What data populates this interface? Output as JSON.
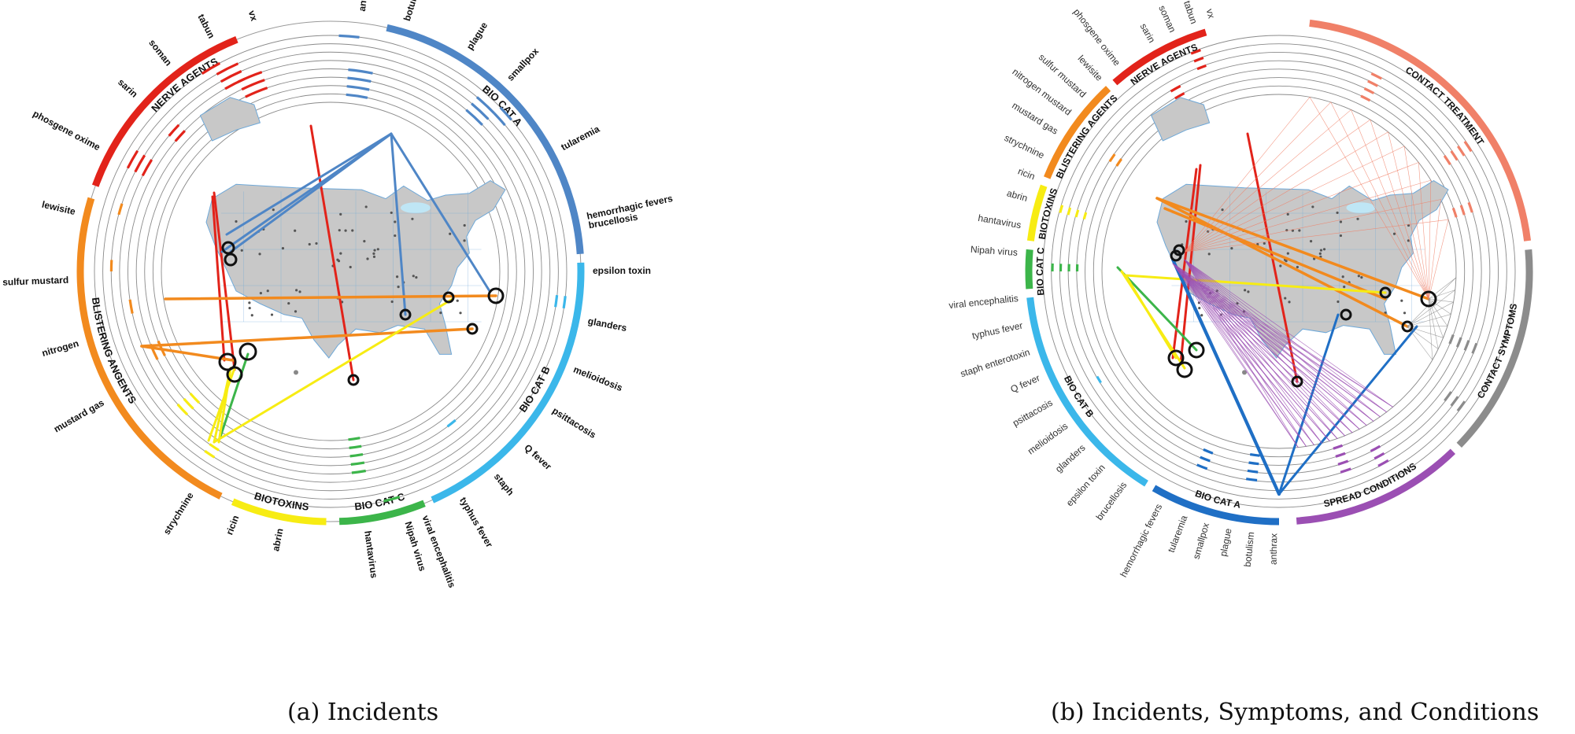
{
  "captions": {
    "a": "(a) Incidents",
    "b": "(b) Incidents, Symptoms, and Conditions"
  },
  "colors": {
    "nerve": "#e2231a",
    "blister": "#f28a1e",
    "biotox": "#f7ec13",
    "catc": "#3cb54a",
    "catb": "#3bb7ea",
    "cata": "#1f6fc5",
    "cata_light": "#4f86c6",
    "contact_treatment": "#f08068",
    "contact_symptoms": "#8c8c8c",
    "spread": "#9b4fb3",
    "map_fill": "#c8c8c8",
    "ring": "#8a8a8a"
  },
  "diagram_a": {
    "groups": [
      {
        "name": "NERVE AGENTS",
        "color": "nerve",
        "items": [
          "vx",
          "tabun",
          "soman",
          "sarin"
        ]
      },
      {
        "name": "BLISTERING ANGENTS",
        "color": "blister",
        "items": [
          "phosgene oxime",
          "lewisite",
          "sulfur mustard",
          "nitrogen",
          "mustard gas"
        ]
      },
      {
        "name": "BIOTOXINS",
        "color": "biotox",
        "items": [
          "strychnine",
          "ricin",
          "abrin"
        ]
      },
      {
        "name": "BIO CAT C",
        "color": "catc",
        "items": [
          "hantavirus",
          "Nipah virus"
        ]
      },
      {
        "name": "BIO CAT B",
        "color": "catb",
        "items": [
          "viral encephalitis",
          "typhus fever",
          "staph",
          "Q fever",
          "psittacosis",
          "melioidosis",
          "glanders",
          "epsilon toxin",
          "brucellosis"
        ]
      },
      {
        "name": "BIO CAT A",
        "color": "cata_light",
        "items": [
          "hemorrhagic fevers",
          "tularemia",
          "smallpox",
          "plague",
          "botulism",
          "anthrax"
        ]
      }
    ]
  },
  "diagram_b": {
    "groups": [
      {
        "name": "NERVE AGENTS",
        "color": "nerve",
        "items": [
          "vx",
          "tabun",
          "soman",
          "sarin"
        ]
      },
      {
        "name": "BLISTERING AGENTS",
        "color": "blister",
        "items": [
          "phosgene oxime",
          "lewisite",
          "sulfur mustard",
          "nitrogen mustard",
          "mustard gas"
        ]
      },
      {
        "name": "BIOTOXINS",
        "color": "biotox",
        "items": [
          "strychnine",
          "ricin",
          "abrin"
        ]
      },
      {
        "name": "BIO CAT C",
        "color": "catc",
        "items": [
          "hantavirus",
          "Nipah virus"
        ]
      },
      {
        "name": "BIO CAT B",
        "color": "catb",
        "items": [
          "viral encephalitis",
          "typhus fever",
          "staph enterotoxin",
          "Q fever",
          "psittacosis",
          "melioidosis",
          "glanders",
          "epsilon toxin",
          "brucellosis"
        ]
      },
      {
        "name": "BIO CAT A",
        "color": "cata",
        "items": [
          "hemorrhagic fevers",
          "tularemia",
          "smallpox",
          "plague",
          "botulism",
          "anthrax"
        ]
      },
      {
        "name": "SPREAD CONDITIONS",
        "color": "spread",
        "items": []
      },
      {
        "name": "CONTACT SYMPTOMS",
        "color": "contact_symptoms",
        "items": []
      },
      {
        "name": "CONTACT TREATMENT",
        "color": "contact_treatment",
        "items": []
      }
    ]
  }
}
